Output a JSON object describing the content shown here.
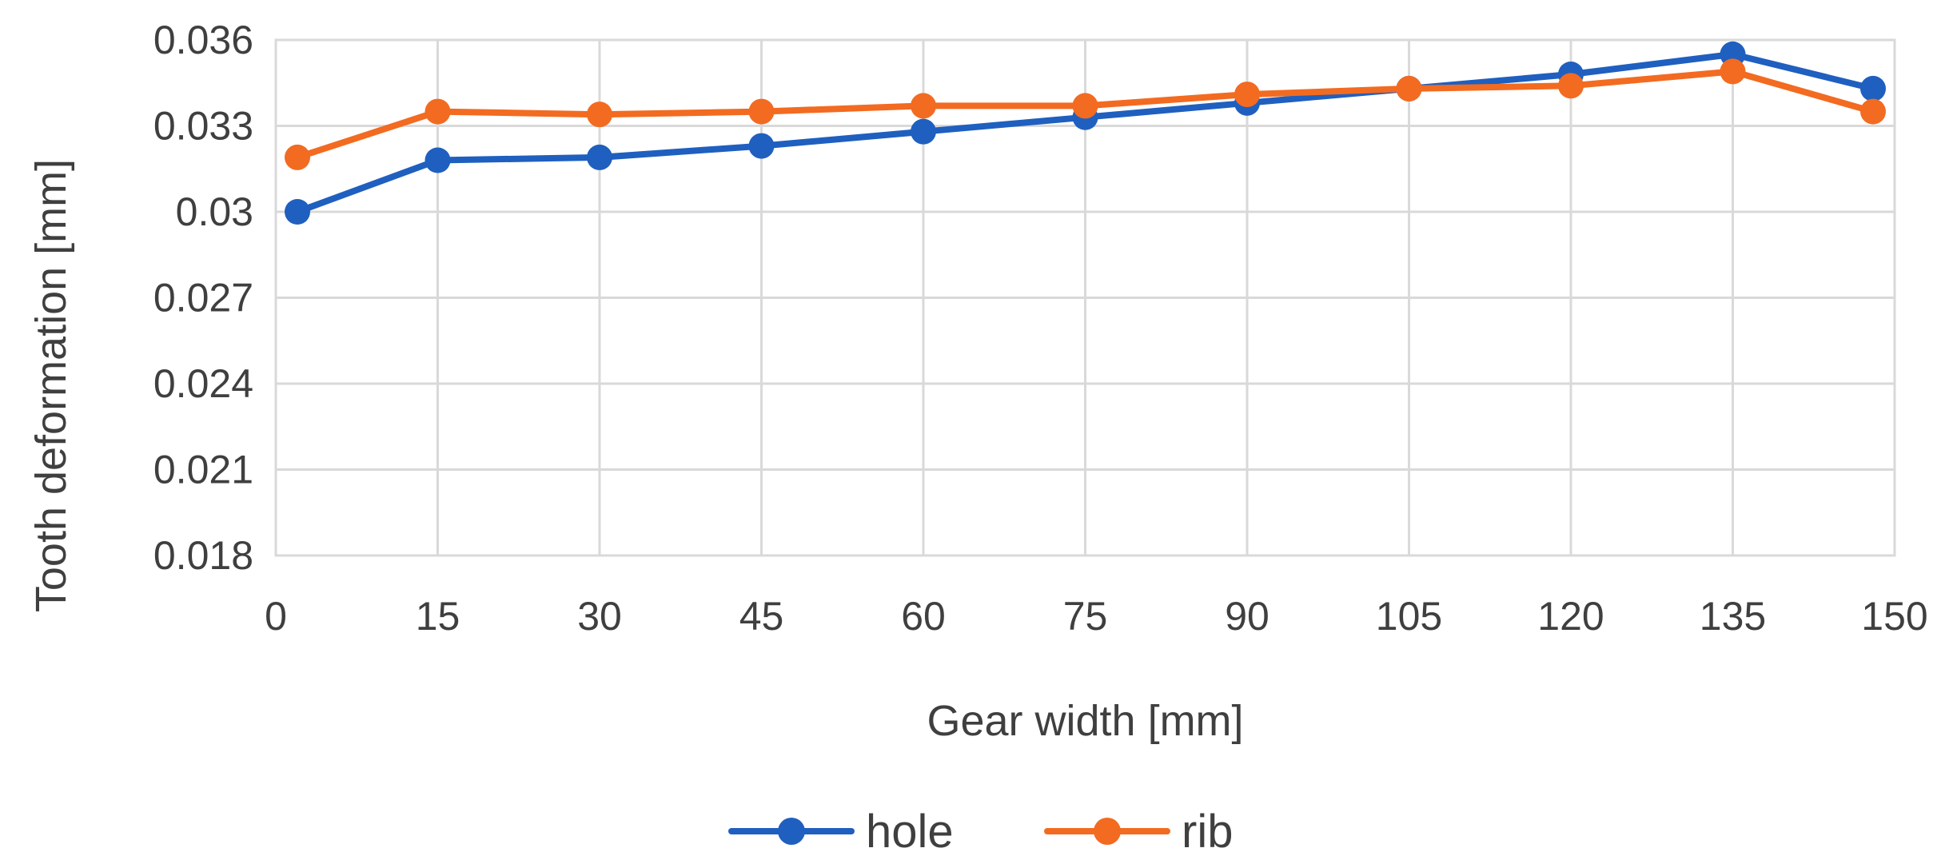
{
  "chart_data": {
    "type": "line",
    "title": "",
    "xlabel": "Gear width [mm]",
    "ylabel": "Tooth deformation  [mm]",
    "xlim": [
      0,
      150
    ],
    "ylim": [
      0.018,
      0.036
    ],
    "x_ticks": [
      "0",
      "15",
      "30",
      "45",
      "60",
      "75",
      "90",
      "105",
      "120",
      "135",
      "150"
    ],
    "y_ticks": [
      "0.036",
      "0.033",
      "0.03",
      "0.027",
      "0.024",
      "0.021",
      "0.018"
    ],
    "x": [
      2,
      15,
      30,
      45,
      60,
      75,
      90,
      105,
      120,
      135,
      148
    ],
    "series": [
      {
        "name": "hole",
        "color": "#1f5fbf",
        "values": [
          0.03,
          0.0318,
          0.0319,
          0.0323,
          0.0328,
          0.0333,
          0.0338,
          0.0343,
          0.0348,
          0.0355,
          0.0343
        ]
      },
      {
        "name": "rib",
        "color": "#f26b21",
        "values": [
          0.0319,
          0.0335,
          0.0334,
          0.0335,
          0.0337,
          0.0337,
          0.0341,
          0.0343,
          0.0344,
          0.0349,
          0.0335
        ]
      }
    ],
    "grid": true,
    "legend": "bottom-center"
  }
}
